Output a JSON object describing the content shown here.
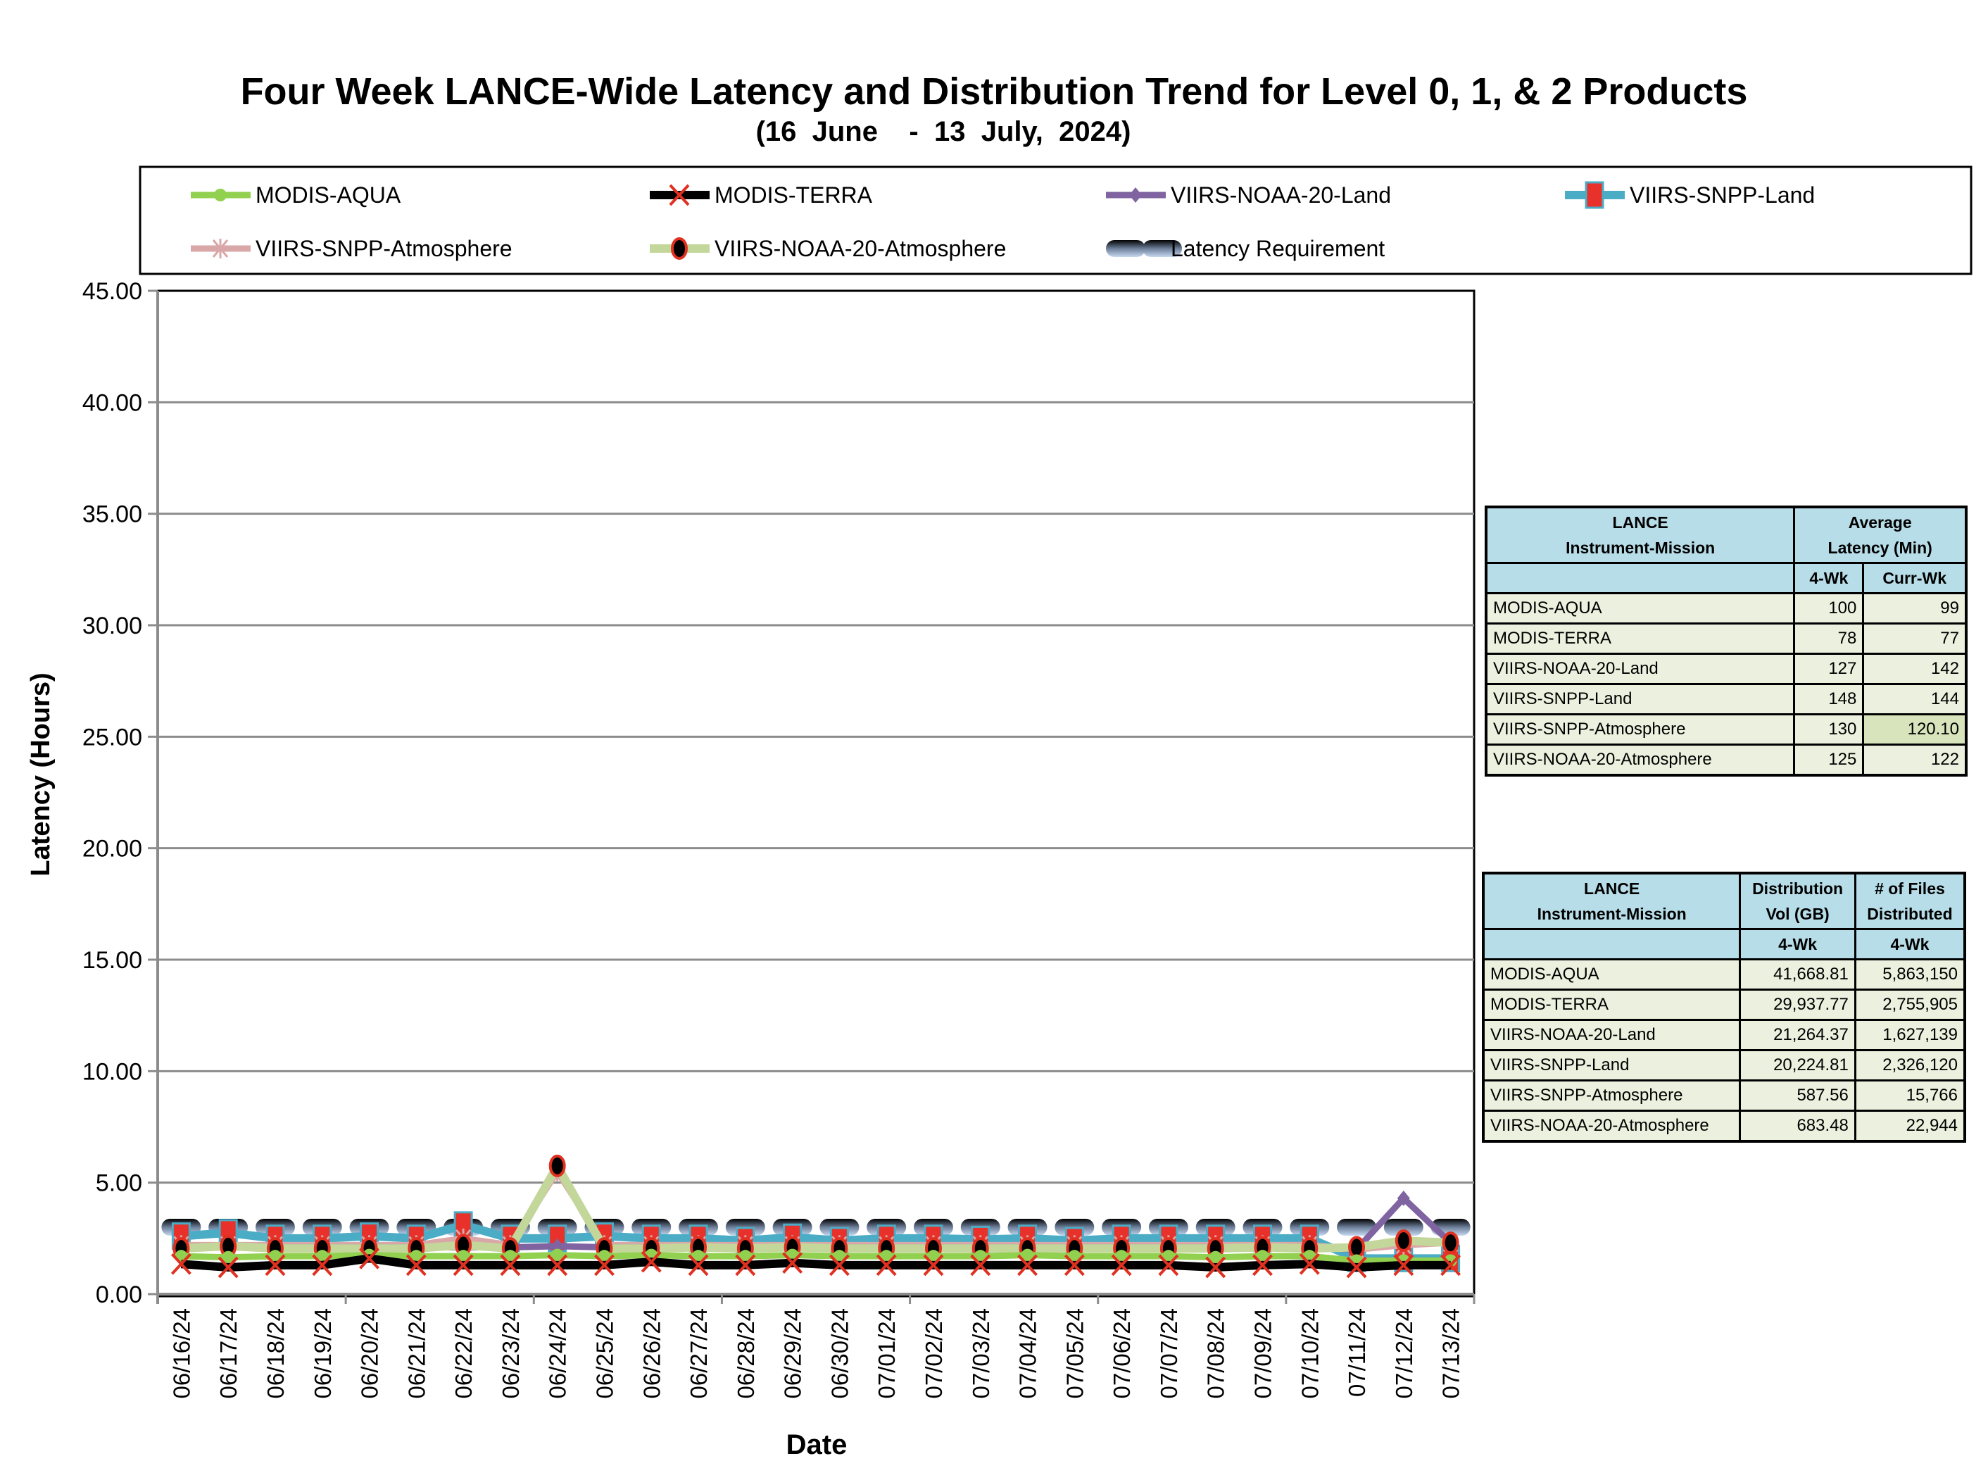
{
  "chart_data": {
    "type": "line",
    "title": "Four Week LANCE-Wide Latency and Distribution Trend for Level 0, 1, & 2 Products",
    "subtitle": "(16  June    -  13  July,  2024)",
    "xlabel": "Date",
    "ylabel": "Latency (Hours)",
    "ylim": [
      0,
      45
    ],
    "yticks": [
      "0.00",
      "5.00",
      "10.00",
      "15.00",
      "20.00",
      "25.00",
      "30.00",
      "35.00",
      "40.00",
      "45.00"
    ],
    "grid": true,
    "legend_position": "top",
    "categories": [
      "06/16/24",
      "06/17/24",
      "06/18/24",
      "06/19/24",
      "06/20/24",
      "06/21/24",
      "06/22/24",
      "06/23/24",
      "06/24/24",
      "06/25/24",
      "06/26/24",
      "06/27/24",
      "06/28/24",
      "06/29/24",
      "06/30/24",
      "07/01/24",
      "07/02/24",
      "07/03/24",
      "07/04/24",
      "07/05/24",
      "07/06/24",
      "07/07/24",
      "07/08/24",
      "07/09/24",
      "07/10/24",
      "07/11/24",
      "07/12/24",
      "07/13/24"
    ],
    "series": [
      {
        "name": "MODIS-AQUA",
        "color": "#92d050",
        "marker": "circle",
        "values": [
          1.7,
          1.65,
          1.7,
          1.7,
          1.75,
          1.7,
          1.7,
          1.7,
          1.75,
          1.7,
          1.75,
          1.7,
          1.7,
          1.75,
          1.7,
          1.7,
          1.7,
          1.7,
          1.75,
          1.7,
          1.7,
          1.7,
          1.65,
          1.7,
          1.7,
          1.5,
          1.5,
          1.5
        ]
      },
      {
        "name": "MODIS-TERRA",
        "color": "#000000",
        "marker": "x",
        "values": [
          1.35,
          1.2,
          1.3,
          1.3,
          1.6,
          1.3,
          1.3,
          1.3,
          1.3,
          1.3,
          1.45,
          1.3,
          1.3,
          1.4,
          1.3,
          1.3,
          1.3,
          1.3,
          1.3,
          1.3,
          1.3,
          1.3,
          1.2,
          1.3,
          1.35,
          1.2,
          1.3,
          1.3
        ]
      },
      {
        "name": "VIIRS-NOAA-20-Land",
        "color": "#8064a2",
        "marker": "diamond",
        "values": [
          2.1,
          2.1,
          2.1,
          2.1,
          2.1,
          2.1,
          2.1,
          2.1,
          2.15,
          2.1,
          2.1,
          2.1,
          2.1,
          2.1,
          2.1,
          2.1,
          2.1,
          2.1,
          2.1,
          2.1,
          2.1,
          2.1,
          2.1,
          2.1,
          2.1,
          2.0,
          4.3,
          2.3
        ]
      },
      {
        "name": "VIIRS-SNPP-Land",
        "color": "#4bacc6",
        "marker": "square",
        "values": [
          2.6,
          2.75,
          2.5,
          2.5,
          2.6,
          2.5,
          3.1,
          2.5,
          2.5,
          2.6,
          2.5,
          2.5,
          2.4,
          2.55,
          2.4,
          2.5,
          2.5,
          2.45,
          2.5,
          2.4,
          2.5,
          2.5,
          2.5,
          2.5,
          2.5,
          1.6,
          1.6,
          1.6
        ]
      },
      {
        "name": "VIIRS-SNPP-Atmosphere",
        "color": "#d9a7a7",
        "marker": "star",
        "values": [
          2.2,
          2.2,
          2.2,
          2.2,
          2.2,
          2.2,
          2.5,
          2.2,
          5.5,
          2.2,
          2.2,
          2.2,
          2.2,
          2.2,
          2.2,
          2.2,
          2.2,
          2.2,
          2.2,
          2.2,
          2.2,
          2.2,
          2.2,
          2.2,
          2.2,
          2.0,
          2.2,
          2.3
        ]
      },
      {
        "name": "VIIRS-NOAA-20-Atmosphere",
        "color": "#c4d79b",
        "marker": "dot",
        "values": [
          2.05,
          2.15,
          2.05,
          2.05,
          2.05,
          2.05,
          2.2,
          2.05,
          5.75,
          2.05,
          2.05,
          2.1,
          2.05,
          2.1,
          2.05,
          2.05,
          2.05,
          2.05,
          2.05,
          2.05,
          2.05,
          2.05,
          2.05,
          2.1,
          2.05,
          2.1,
          2.4,
          2.3
        ]
      },
      {
        "name": "Latency Requirement",
        "color": "#1f2d3d",
        "marker": "dash",
        "values": [
          3,
          3,
          3,
          3,
          3,
          3,
          3,
          3,
          3,
          3,
          3,
          3,
          3,
          3,
          3,
          3,
          3,
          3,
          3,
          3,
          3,
          3,
          3,
          3,
          3,
          3,
          3,
          3
        ]
      }
    ]
  },
  "latency_table": {
    "header_col1": [
      "LANCE",
      "Instrument-Mission"
    ],
    "header_col2": [
      "Average",
      "Latency (Min)"
    ],
    "sub": [
      "4-Wk",
      "Curr-Wk"
    ],
    "rows": [
      {
        "name": "MODIS-AQUA",
        "wk4": "100",
        "curr": "99"
      },
      {
        "name": "MODIS-TERRA",
        "wk4": "78",
        "curr": "77"
      },
      {
        "name": "VIIRS-NOAA-20-Land",
        "wk4": "127",
        "curr": "142"
      },
      {
        "name": "VIIRS-SNPP-Land",
        "wk4": "148",
        "curr": "144"
      },
      {
        "name": "VIIRS-SNPP-Atmosphere",
        "wk4": "130",
        "curr": "120.10"
      },
      {
        "name": "VIIRS-NOAA-20-Atmosphere",
        "wk4": "125",
        "curr": "122"
      }
    ]
  },
  "distribution_table": {
    "header_col1": [
      "LANCE",
      "Instrument-Mission"
    ],
    "header_col2": [
      "Distribution",
      "Vol (GB)"
    ],
    "header_col3": [
      "# of Files",
      "Distributed"
    ],
    "sub": [
      "4-Wk",
      "4-Wk"
    ],
    "rows": [
      {
        "name": "MODIS-AQUA",
        "vol": "41,668.81",
        "files": "5,863,150"
      },
      {
        "name": "MODIS-TERRA",
        "vol": "29,937.77",
        "files": "2,755,905"
      },
      {
        "name": "VIIRS-NOAA-20-Land",
        "vol": "21,264.37",
        "files": "1,627,139"
      },
      {
        "name": "VIIRS-SNPP-Land",
        "vol": "20,224.81",
        "files": "2,326,120"
      },
      {
        "name": "VIIRS-SNPP-Atmosphere",
        "vol": "587.56",
        "files": "15,766"
      },
      {
        "name": "VIIRS-NOAA-20-Atmosphere",
        "vol": "683.48",
        "files": "22,944"
      }
    ]
  }
}
